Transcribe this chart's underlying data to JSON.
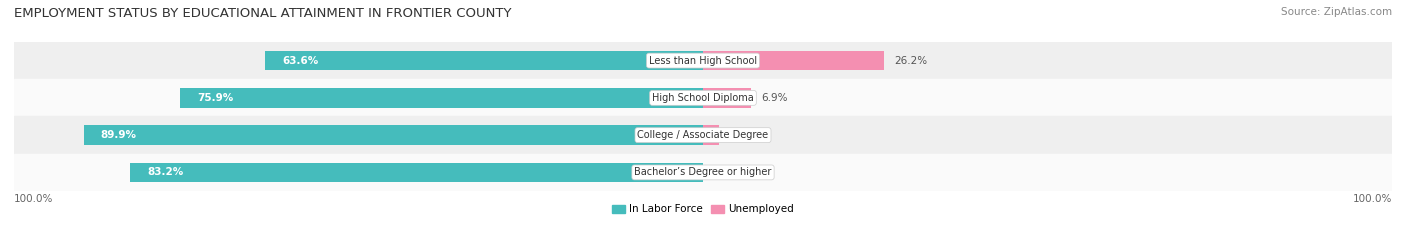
{
  "title": "EMPLOYMENT STATUS BY EDUCATIONAL ATTAINMENT IN FRONTIER COUNTY",
  "source": "Source: ZipAtlas.com",
  "categories": [
    "Less than High School",
    "High School Diploma",
    "College / Associate Degree",
    "Bachelor’s Degree or higher"
  ],
  "labor_force": [
    63.6,
    75.9,
    89.9,
    83.2
  ],
  "unemployed": [
    26.2,
    6.9,
    2.3,
    0.0
  ],
  "labor_force_color": "#45BCBC",
  "unemployed_color": "#F48FB1",
  "row_bg_even": "#EFEFEF",
  "row_bg_odd": "#FAFAFA",
  "axis_label_left": "100.0%",
  "axis_label_right": "100.0%",
  "legend_labor": "In Labor Force",
  "legend_unemployed": "Unemployed",
  "title_fontsize": 9.5,
  "source_fontsize": 7.5,
  "bar_label_fontsize": 7.5,
  "category_fontsize": 7.0,
  "axis_fontsize": 7.5,
  "legend_fontsize": 7.5,
  "max_pct": 100.0
}
